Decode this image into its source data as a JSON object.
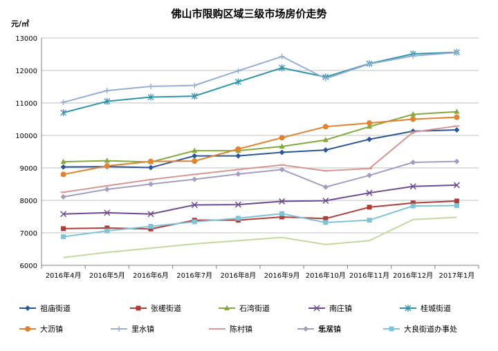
{
  "chart_data": {
    "type": "line",
    "title": "佛山市限购区域三级市场房价走势",
    "ylabel": "元/㎡",
    "xlabel": "",
    "categories": [
      "2016年4月",
      "2016年5月",
      "2016年6月",
      "2016年7月",
      "2016年8月",
      "2016年9月",
      "2016年10月",
      "2016年11月",
      "2016年12月",
      "2017年1月"
    ],
    "ylim": [
      6000,
      13000
    ],
    "yticks": [
      "6000",
      "7000",
      "8000",
      "9000",
      "10000",
      "11000",
      "12000",
      "13000"
    ],
    "grid": true,
    "legend_position": "bottom",
    "series": [
      {
        "name": "祖庙街道",
        "color": "#2a5699",
        "marker": "diamond",
        "values": [
          9030,
          9040,
          9010,
          9370,
          9370,
          9480,
          9550,
          9880,
          10130,
          10170
        ]
      },
      {
        "name": "张槎街道",
        "color": "#b03c38",
        "marker": "square",
        "values": [
          7130,
          7150,
          7120,
          7390,
          7390,
          7490,
          7440,
          7790,
          7920,
          7980
        ]
      },
      {
        "name": "石湾街道",
        "color": "#84a83c",
        "marker": "triangle",
        "values": [
          9190,
          9220,
          9180,
          9530,
          9530,
          9660,
          9860,
          10270,
          10650,
          10730
        ]
      },
      {
        "name": "南庄镇",
        "color": "#6e4a94",
        "marker": "x",
        "values": [
          7580,
          7620,
          7580,
          7860,
          7870,
          7970,
          7990,
          8230,
          8430,
          8470
        ]
      },
      {
        "name": "桂城街道",
        "color": "#2f94ab",
        "marker": "star",
        "values": [
          10700,
          11050,
          11180,
          11210,
          11650,
          12080,
          11800,
          12210,
          12510,
          12560
        ]
      },
      {
        "name": "大沥镇",
        "color": "#e0822e",
        "marker": "circle",
        "values": [
          8800,
          9060,
          9200,
          9210,
          9580,
          9930,
          10270,
          10380,
          10500,
          10560
        ]
      },
      {
        "name": "里水镇",
        "color": "#94aed8",
        "marker": "plus",
        "values": [
          11020,
          11380,
          11510,
          11540,
          11990,
          12430,
          11750,
          12200,
          12450,
          12550
        ]
      },
      {
        "name": "陈村镇",
        "color": "#d89693",
        "marker": "dash",
        "values": [
          8250,
          8450,
          8640,
          8800,
          8950,
          9090,
          8910,
          8980,
          10100,
          10290
        ]
      },
      {
        "name": "北滘镇",
        "color": "#c4d89c",
        "marker": "none",
        "values": [
          6240,
          6400,
          6530,
          6660,
          6760,
          6860,
          6640,
          6760,
          7410,
          7480
        ]
      },
      {
        "name": "乐从镇",
        "color": "#a49cc4",
        "marker": "diamond",
        "values": [
          8110,
          8340,
          8500,
          8650,
          8810,
          8950,
          8410,
          8770,
          9170,
          9200
        ]
      },
      {
        "name": "大良街道办事处",
        "color": "#7fc3d8",
        "marker": "square",
        "values": [
          6880,
          7060,
          7200,
          7340,
          7450,
          7590,
          7320,
          7390,
          7830,
          7840
        ]
      }
    ]
  }
}
